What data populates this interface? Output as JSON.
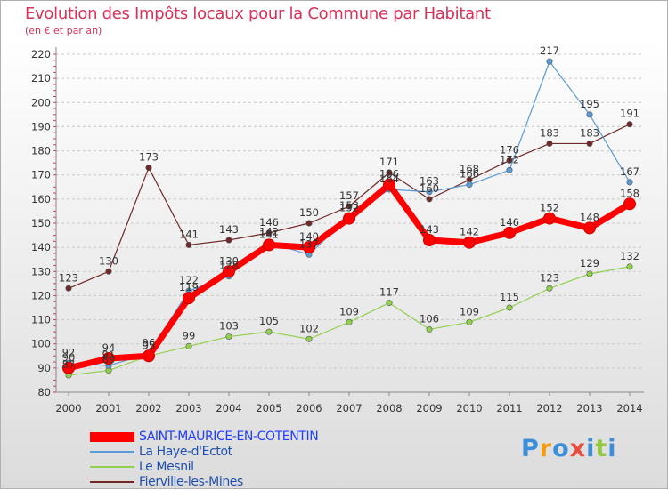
{
  "chart_data": {
    "type": "line",
    "title": "Evolution des Impôts locaux pour la Commune par Habitant",
    "subtitle": "(en € et par an)",
    "xlabel": "",
    "ylabel": "",
    "x": [
      "2000",
      "2001",
      "2002",
      "2003",
      "2004",
      "2005",
      "2006",
      "2007",
      "2008",
      "2009",
      "2010",
      "2011",
      "2012",
      "2013",
      "2014"
    ],
    "ylim": [
      80,
      220
    ],
    "yticks": [
      80,
      90,
      100,
      110,
      120,
      130,
      140,
      150,
      160,
      170,
      180,
      190,
      200,
      210,
      220
    ],
    "grid": "horizontal dashed",
    "legend_position": "bottom-left",
    "series": [
      {
        "name": "SAINT-MAURICE-EN-COTENTIN",
        "color": "#ff0000",
        "values": [
          90,
          94,
          95,
          119,
          130,
          141,
          140,
          152,
          166,
          143,
          142,
          146,
          152,
          148,
          158
        ]
      },
      {
        "name": "La Haye-d'Ectot",
        "color": "#5b9bd5",
        "values": [
          92,
          91,
          96,
          122,
          128,
          142,
          137,
          153,
          164,
          163,
          166,
          172,
          217,
          195,
          167
        ]
      },
      {
        "name": "Le Mesnil",
        "color": "#92d050",
        "values": [
          87,
          89,
          95,
          99,
          103,
          105,
          102,
          109,
          117,
          106,
          109,
          115,
          123,
          129,
          132
        ]
      },
      {
        "name": "Fierville-les-Mines",
        "color": "#702828",
        "values": [
          123,
          130,
          173,
          141,
          143,
          146,
          150,
          157,
          171,
          160,
          168,
          176,
          183,
          183,
          191
        ]
      }
    ]
  },
  "legend": {
    "label_colors": [
      "#2040ff",
      "#2050b0",
      "#2050b0",
      "#2050b0"
    ]
  },
  "logo": {
    "text": "Proxiti",
    "letter_colors": [
      "#3a8fd8",
      "#f39c12",
      "#3a8fd8",
      "#e74c3c",
      "#3a8fd8",
      "#92c83e",
      "#3a8fd8"
    ]
  }
}
